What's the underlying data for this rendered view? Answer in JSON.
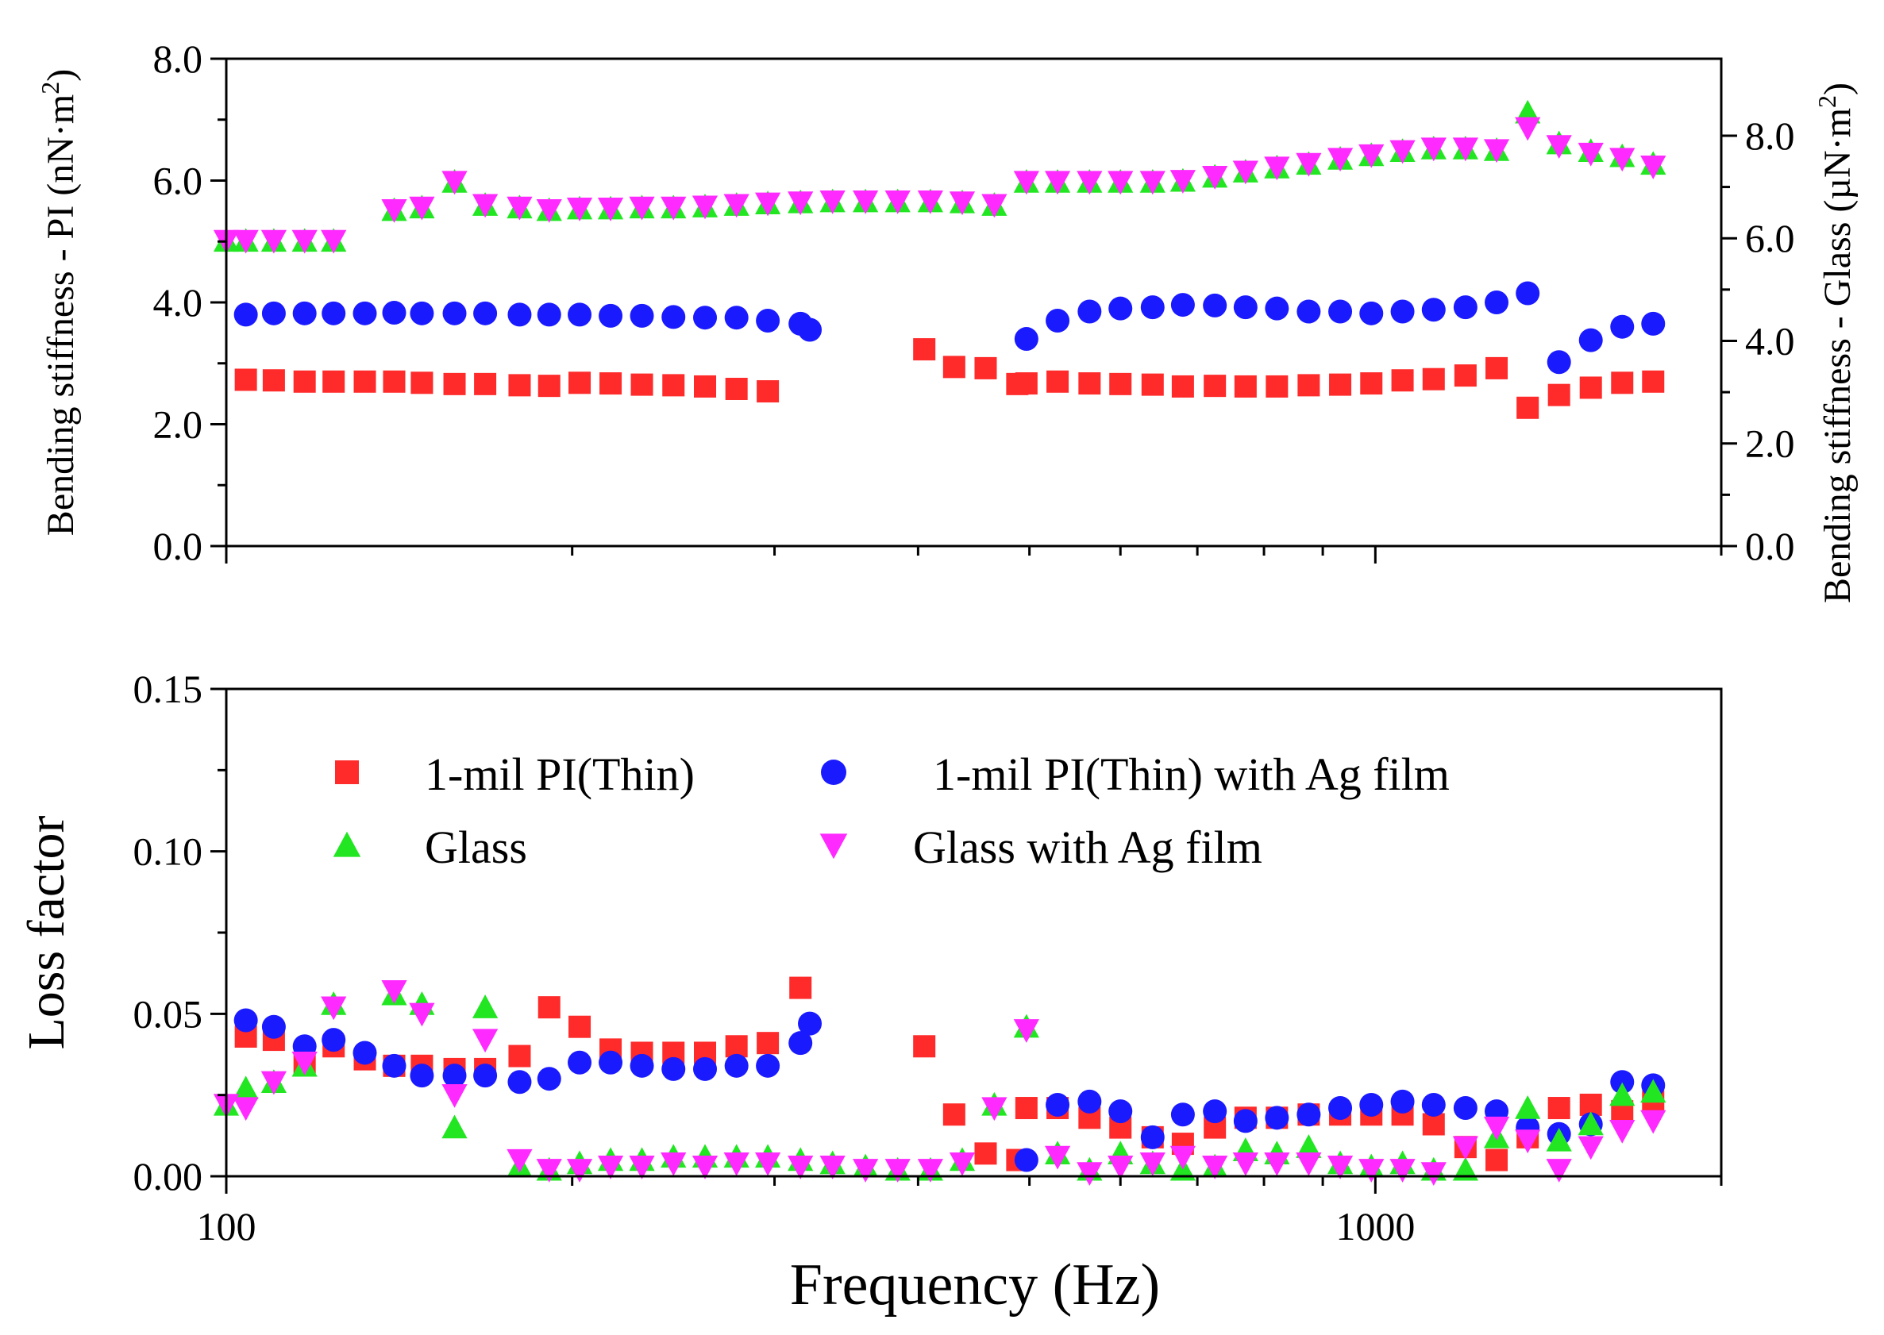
{
  "colors": {
    "pi": "#ff2a2a",
    "pi_ag": "#1a1aff",
    "glass": "#22e622",
    "glass_ag": "#ff2aff"
  },
  "chart_data": [
    {
      "id": "stiffness",
      "type": "scatter",
      "x_scale": "log",
      "xlim": [
        100,
        2000
      ],
      "ylabel": "Bending stiffness - PI (nN·m²)",
      "ylabel_main": "Bending stiffness - PI (nN·m",
      "ylabel_sup": "2",
      "ylabel_close": ")",
      "ylim": [
        0,
        8
      ],
      "yticks": [
        "0.0",
        "2.0",
        "4.0",
        "6.0",
        "8.0"
      ],
      "y2label": "Bending stiffness - Glass (µN·m²)",
      "y2label_main": "Bending stiffness - Glass (µN·m",
      "y2label_sup": "2",
      "y2label_close": ")",
      "y2lim": [
        0,
        9.5
      ],
      "y2ticks": [
        "0.0",
        "2.0",
        "4.0",
        "6.0",
        "8.0"
      ],
      "series": [
        {
          "name": "1-mil PI(Thin)",
          "marker": "square",
          "color_key": "pi",
          "axis": "left",
          "x": [
            104,
            110,
            117,
            124,
            132,
            140,
            148,
            158,
            168,
            180,
            191,
            203,
            216,
            230,
            245,
            261,
            278,
            296,
            405,
            430,
            458,
            488,
            497,
            529,
            564,
            600,
            640,
            680,
            725,
            771,
            821,
            875,
            932,
            992,
            1056,
            1124,
            1198,
            1275,
            1357,
            1445,
            1540,
            1640,
            1745
          ],
          "y": [
            2.73,
            2.72,
            2.7,
            2.7,
            2.7,
            2.7,
            2.68,
            2.66,
            2.66,
            2.64,
            2.63,
            2.68,
            2.67,
            2.65,
            2.64,
            2.62,
            2.58,
            2.54,
            3.23,
            2.94,
            2.92,
            2.66,
            2.67,
            2.7,
            2.67,
            2.66,
            2.65,
            2.62,
            2.63,
            2.62,
            2.62,
            2.64,
            2.65,
            2.67,
            2.72,
            2.74,
            2.8,
            2.92,
            2.27,
            2.48,
            2.6,
            2.68,
            2.7
          ]
        },
        {
          "name": "1-mil PI(Thin) with Ag film",
          "marker": "circle",
          "color_key": "pi_ag",
          "axis": "left",
          "x": [
            104,
            110,
            117,
            124,
            132,
            140,
            148,
            158,
            168,
            180,
            191,
            203,
            216,
            230,
            245,
            261,
            278,
            296,
            316,
            322,
            497,
            529,
            564,
            600,
            640,
            680,
            725,
            771,
            821,
            875,
            932,
            992,
            1056,
            1124,
            1198,
            1275,
            1357,
            1445,
            1540,
            1640,
            1745
          ],
          "y": [
            3.8,
            3.82,
            3.82,
            3.82,
            3.82,
            3.83,
            3.82,
            3.82,
            3.82,
            3.8,
            3.8,
            3.8,
            3.78,
            3.78,
            3.76,
            3.75,
            3.75,
            3.7,
            3.65,
            3.55,
            3.4,
            3.7,
            3.85,
            3.9,
            3.92,
            3.96,
            3.95,
            3.92,
            3.9,
            3.85,
            3.85,
            3.82,
            3.85,
            3.88,
            3.92,
            4.0,
            4.15,
            3.02,
            3.38,
            3.6,
            3.65
          ]
        },
        {
          "name": "Glass",
          "marker": "triangle-up",
          "color_key": "glass",
          "axis": "right",
          "x": [
            100,
            104,
            110,
            117,
            124,
            140,
            148,
            158,
            168,
            180,
            191,
            203,
            216,
            230,
            245,
            261,
            278,
            296,
            316,
            337,
            360,
            384,
            410,
            437,
            466,
            497,
            529,
            564,
            600,
            640,
            680,
            725,
            771,
            821,
            875,
            932,
            992,
            1056,
            1124,
            1198,
            1275,
            1357,
            1445,
            1540,
            1640,
            1745
          ],
          "y": [
            5.95,
            5.95,
            5.95,
            5.95,
            5.95,
            6.55,
            6.6,
            7.1,
            6.65,
            6.6,
            6.55,
            6.58,
            6.58,
            6.6,
            6.6,
            6.62,
            6.65,
            6.68,
            6.7,
            6.72,
            6.72,
            6.72,
            6.72,
            6.7,
            6.65,
            7.1,
            7.1,
            7.1,
            7.1,
            7.1,
            7.12,
            7.2,
            7.3,
            7.38,
            7.45,
            7.55,
            7.62,
            7.7,
            7.75,
            7.75,
            7.72,
            8.45,
            7.85,
            7.7,
            7.6,
            7.45
          ]
        },
        {
          "name": "Glass with Ag film",
          "marker": "triangle-down",
          "color_key": "glass_ag",
          "axis": "right",
          "x": [
            100,
            104,
            110,
            117,
            124,
            140,
            148,
            158,
            168,
            180,
            191,
            203,
            216,
            230,
            245,
            261,
            278,
            296,
            316,
            337,
            360,
            384,
            410,
            437,
            466,
            497,
            529,
            564,
            600,
            640,
            680,
            725,
            771,
            821,
            875,
            932,
            992,
            1056,
            1124,
            1198,
            1275,
            1357,
            1445,
            1540,
            1640,
            1745
          ],
          "y": [
            5.95,
            5.95,
            5.95,
            5.95,
            5.95,
            6.55,
            6.6,
            7.1,
            6.65,
            6.6,
            6.55,
            6.58,
            6.58,
            6.6,
            6.6,
            6.62,
            6.65,
            6.68,
            6.7,
            6.72,
            6.72,
            6.72,
            6.72,
            6.7,
            6.65,
            7.1,
            7.1,
            7.1,
            7.1,
            7.1,
            7.12,
            7.2,
            7.3,
            7.38,
            7.45,
            7.55,
            7.62,
            7.7,
            7.75,
            7.75,
            7.72,
            8.15,
            7.8,
            7.65,
            7.55,
            7.4
          ]
        }
      ]
    },
    {
      "id": "loss",
      "type": "scatter",
      "x_scale": "log",
      "xlim": [
        100,
        2000
      ],
      "xlabel": "Frequency (Hz)",
      "xticks": [
        "100",
        "1000"
      ],
      "xtick_values": [
        100,
        1000
      ],
      "ylabel": "Loss factor",
      "ylim": [
        0,
        0.15
      ],
      "yticks": [
        "0.00",
        "0.05",
        "0.10",
        "0.15"
      ],
      "legend": {
        "position": "top",
        "entries": [
          {
            "label": "1-mil PI(Thin)",
            "marker": "square",
            "color_key": "pi"
          },
          {
            "label": "1-mil PI(Thin) with Ag film",
            "marker": "circle",
            "color_key": "pi_ag"
          },
          {
            "label": "Glass",
            "marker": "triangle-up",
            "color_key": "glass"
          },
          {
            "label": "Glass with Ag film",
            "marker": "triangle-down",
            "color_key": "glass_ag"
          }
        ]
      },
      "series": [
        {
          "name": "1-mil PI(Thin)",
          "marker": "square",
          "color_key": "pi",
          "x": [
            104,
            110,
            117,
            124,
            132,
            140,
            148,
            158,
            168,
            180,
            191,
            203,
            216,
            230,
            245,
            261,
            278,
            296,
            316,
            405,
            430,
            458,
            488,
            497,
            529,
            564,
            600,
            640,
            680,
            725,
            771,
            821,
            875,
            932,
            992,
            1056,
            1124,
            1198,
            1275,
            1357,
            1445,
            1540,
            1640,
            1745
          ],
          "y": [
            0.043,
            0.042,
            0.035,
            0.04,
            0.036,
            0.034,
            0.034,
            0.033,
            0.033,
            0.037,
            0.052,
            0.046,
            0.039,
            0.038,
            0.038,
            0.038,
            0.04,
            0.041,
            0.058,
            0.04,
            0.019,
            0.007,
            0.005,
            0.021,
            0.021,
            0.018,
            0.015,
            0.012,
            0.01,
            0.015,
            0.018,
            0.018,
            0.019,
            0.019,
            0.019,
            0.019,
            0.016,
            0.009,
            0.005,
            0.012,
            0.021,
            0.022,
            0.02,
            0.023
          ]
        },
        {
          "name": "1-mil PI(Thin) with Ag film",
          "marker": "circle",
          "color_key": "pi_ag",
          "x": [
            104,
            110,
            117,
            124,
            132,
            140,
            148,
            158,
            168,
            180,
            191,
            203,
            216,
            230,
            245,
            261,
            278,
            296,
            316,
            322,
            497,
            529,
            564,
            600,
            640,
            680,
            725,
            771,
            821,
            875,
            932,
            992,
            1056,
            1124,
            1198,
            1275,
            1357,
            1445,
            1540,
            1640,
            1745
          ],
          "y": [
            0.048,
            0.046,
            0.04,
            0.042,
            0.038,
            0.034,
            0.031,
            0.031,
            0.031,
            0.029,
            0.03,
            0.035,
            0.035,
            0.034,
            0.033,
            0.033,
            0.034,
            0.034,
            0.041,
            0.047,
            0.005,
            0.022,
            0.023,
            0.02,
            0.012,
            0.019,
            0.02,
            0.017,
            0.018,
            0.019,
            0.021,
            0.022,
            0.023,
            0.022,
            0.021,
            0.02,
            0.015,
            0.013,
            0.016,
            0.029,
            0.028
          ]
        },
        {
          "name": "Glass",
          "marker": "triangle-up",
          "color_key": "glass",
          "x": [
            100,
            104,
            110,
            117,
            124,
            140,
            148,
            158,
            168,
            180,
            191,
            203,
            216,
            230,
            245,
            261,
            278,
            296,
            316,
            337,
            360,
            384,
            410,
            437,
            466,
            497,
            529,
            564,
            600,
            640,
            680,
            725,
            771,
            821,
            875,
            932,
            992,
            1056,
            1124,
            1198,
            1275,
            1357,
            1445,
            1540,
            1640,
            1745
          ],
          "y": [
            0.022,
            0.027,
            0.029,
            0.034,
            0.053,
            0.056,
            0.053,
            0.015,
            0.052,
            0.003,
            0.002,
            0.004,
            0.005,
            0.005,
            0.006,
            0.006,
            0.006,
            0.006,
            0.005,
            0.004,
            0.003,
            0.002,
            0.002,
            0.005,
            0.022,
            0.046,
            0.007,
            0.002,
            0.007,
            0.004,
            0.002,
            0.003,
            0.008,
            0.007,
            0.009,
            0.004,
            0.003,
            0.004,
            0.002,
            0.002,
            0.012,
            0.021,
            0.011,
            0.016,
            0.025,
            0.026
          ]
        },
        {
          "name": "Glass with Ag film",
          "marker": "triangle-down",
          "color_key": "glass_ag",
          "x": [
            100,
            104,
            110,
            117,
            124,
            140,
            148,
            158,
            168,
            180,
            191,
            203,
            216,
            230,
            245,
            261,
            278,
            296,
            316,
            337,
            360,
            384,
            410,
            437,
            466,
            497,
            529,
            564,
            600,
            640,
            680,
            725,
            771,
            821,
            875,
            932,
            992,
            1056,
            1124,
            1198,
            1275,
            1357,
            1445,
            1540,
            1640,
            1745
          ],
          "y": [
            0.022,
            0.021,
            0.029,
            0.035,
            0.052,
            0.057,
            0.05,
            0.025,
            0.042,
            0.005,
            0.002,
            0.002,
            0.003,
            0.003,
            0.004,
            0.003,
            0.004,
            0.004,
            0.003,
            0.003,
            0.002,
            0.002,
            0.002,
            0.004,
            0.021,
            0.045,
            0.006,
            0.001,
            0.003,
            0.004,
            0.006,
            0.003,
            0.004,
            0.004,
            0.004,
            0.003,
            0.002,
            0.002,
            0.001,
            0.009,
            0.015,
            0.011,
            0.002,
            0.009,
            0.014,
            0.017
          ]
        }
      ]
    }
  ]
}
